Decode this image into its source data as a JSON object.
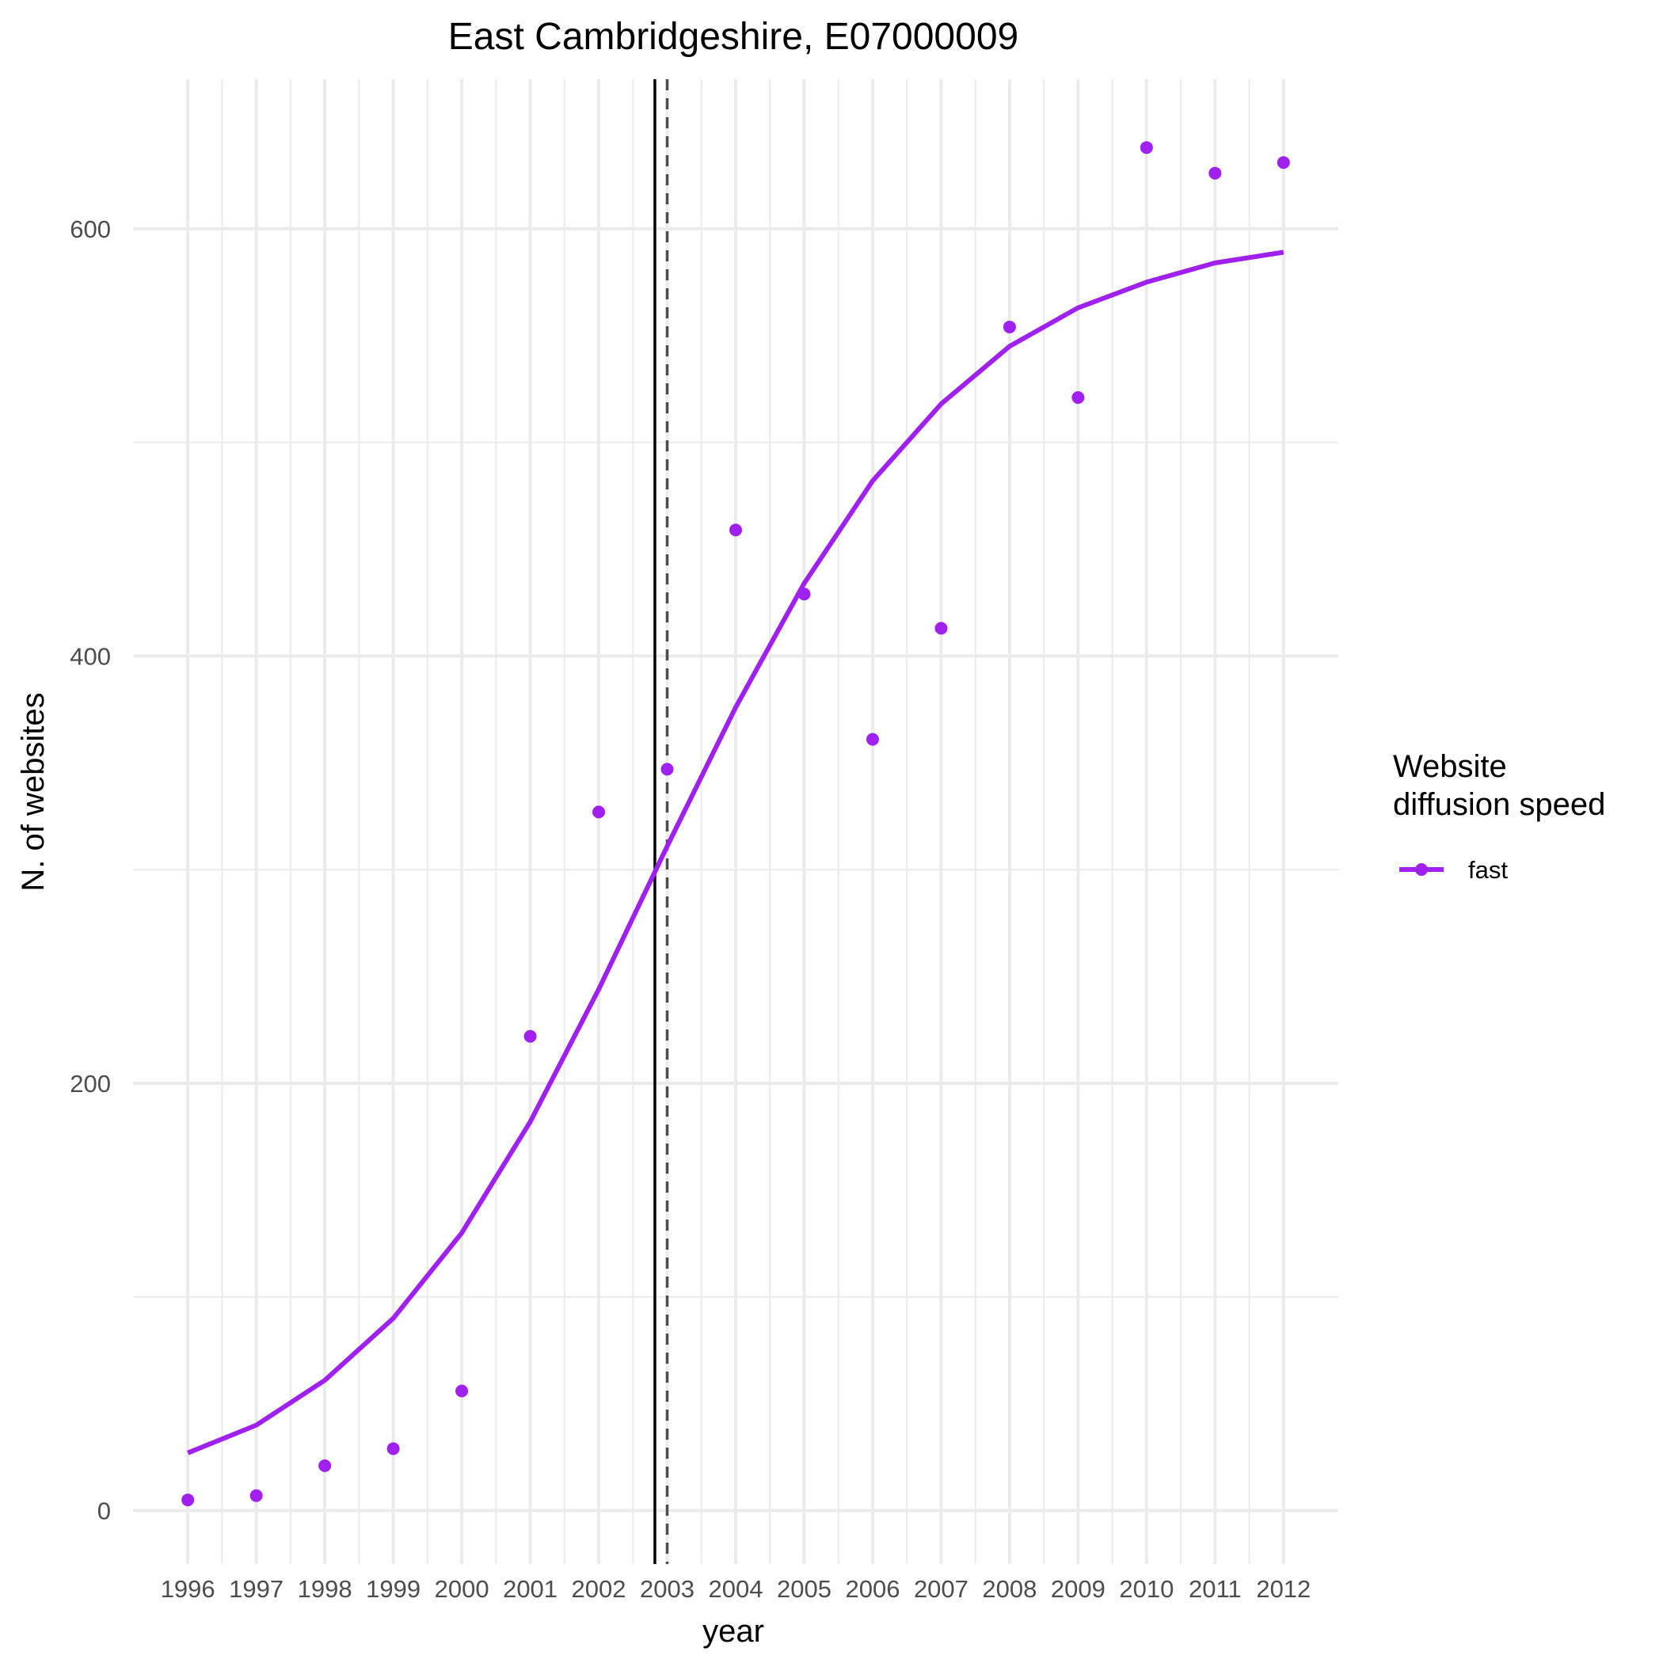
{
  "chart_data": {
    "type": "line",
    "title": "East Cambridgeshire, E07000009",
    "xlabel": "year",
    "ylabel": "N. of websites",
    "x": [
      1996,
      1997,
      1998,
      1999,
      2000,
      2001,
      2002,
      2003,
      2004,
      2005,
      2006,
      2007,
      2008,
      2009,
      2010,
      2011,
      2012
    ],
    "x_tick_labels": [
      "1996",
      "1997",
      "1998",
      "1999",
      "2000",
      "2001",
      "2002",
      "2003",
      "2004",
      "2005",
      "2006",
      "2007",
      "2008",
      "2009",
      "2010",
      "2011",
      "2012"
    ],
    "y_ticks": [
      0,
      200,
      400,
      600
    ],
    "y_tick_labels": [
      "0",
      "200",
      "400",
      "600"
    ],
    "ylim": [
      -25,
      670
    ],
    "xlim": [
      1995.2,
      2012.8
    ],
    "grid": true,
    "series": [
      {
        "name": "fast",
        "color": "#a020f0",
        "points": [
          5,
          7,
          21,
          29,
          56,
          222,
          327,
          347,
          459,
          429,
          361,
          413,
          554,
          521,
          638,
          626,
          631
        ],
        "fitted": [
          27,
          40,
          61,
          90,
          130,
          182,
          244,
          311,
          376,
          434,
          482,
          518,
          545,
          563,
          575,
          584,
          589
        ]
      }
    ],
    "vlines": [
      {
        "x": 2002.82,
        "style": "solid",
        "color": "#000000"
      },
      {
        "x": 2003.0,
        "style": "dashed",
        "color": "#4d4d4d"
      }
    ],
    "legend": {
      "title_lines": [
        "Website",
        "diffusion speed"
      ],
      "placement": "right",
      "entries": [
        {
          "label": "fast",
          "color": "#a020f0"
        }
      ]
    }
  }
}
